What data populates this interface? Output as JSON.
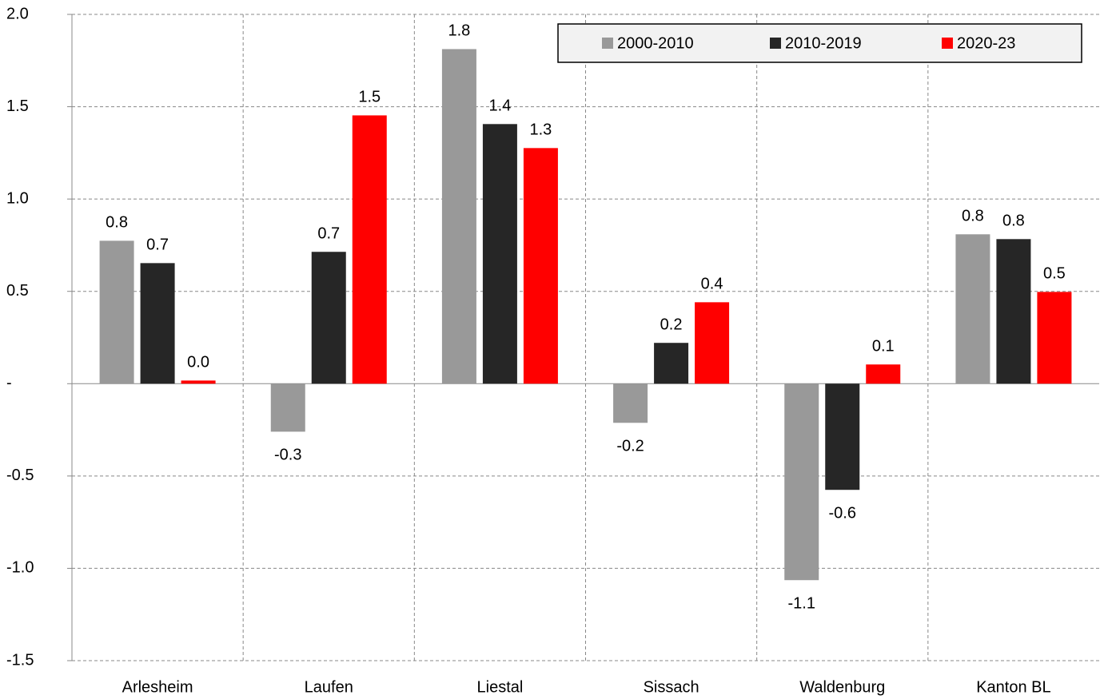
{
  "chart_data": {
    "type": "bar",
    "categories": [
      "Arlesheim",
      "Laufen",
      "Liestal",
      "Sissach",
      "Waldenburg",
      "Kanton BL"
    ],
    "series": [
      {
        "name": "2000-2010",
        "color": "#999999",
        "values": [
          0.774,
          -0.26,
          1.812,
          -0.212,
          -1.064,
          0.809
        ],
        "value_labels": [
          "0.8",
          "-0.3",
          "1.8",
          "-0.2",
          "-1.1",
          "0.8"
        ]
      },
      {
        "name": "2010-2019",
        "color": "#262626",
        "values": [
          0.653,
          0.714,
          1.406,
          0.221,
          -0.575,
          0.783
        ],
        "value_labels": [
          "0.7",
          "0.7",
          "1.4",
          "0.2",
          "-0.6",
          "0.8"
        ]
      },
      {
        "name": "2020-23",
        "color": "#ff0000",
        "values": [
          0.017,
          1.453,
          1.276,
          0.441,
          0.104,
          0.497
        ],
        "value_labels": [
          "0.0",
          "1.5",
          "1.3",
          "0.4",
          "0.1",
          "0.5"
        ]
      }
    ],
    "ylim": [
      -1.5,
      2
    ],
    "yticks": [
      {
        "value": 2,
        "label": "2.0"
      },
      1.5,
      {
        "value": 1,
        "label": "1.0"
      },
      0.5,
      {
        "value": 0,
        "label": "-"
      },
      -0.5,
      {
        "value": -1,
        "label": "-1.0"
      },
      -1.5
    ],
    "grid": true,
    "legend": "top-right"
  }
}
